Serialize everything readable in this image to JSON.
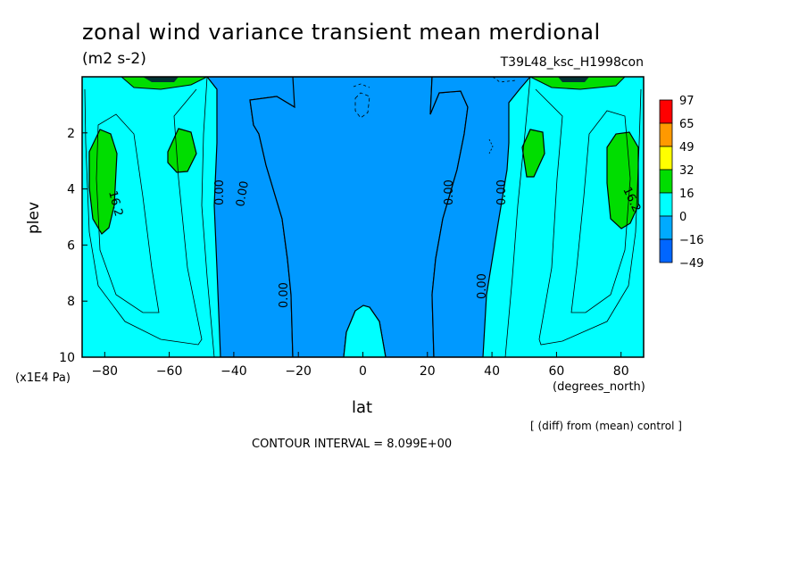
{
  "chart_data": {
    "type": "heatmap",
    "title": "zonal wind variance transient mean merdional",
    "units": "(m2 s-2)",
    "run_label": "T39L48_ksc_H1998con",
    "xlabel": "lat",
    "xunits": "(degrees_north)",
    "ylabel": "plev",
    "yunits": "(x1E4 Pa)",
    "xlim": [
      -87,
      87
    ],
    "ylim": [
      10,
      0
    ],
    "x_ticks": [
      -80,
      -60,
      -40,
      -20,
      0,
      20,
      40,
      60,
      80
    ],
    "y_ticks": [
      2,
      4,
      6,
      8,
      10
    ],
    "colorbar": {
      "levels": [
        "97",
        "65",
        "49",
        "32",
        "16",
        "0",
        "-16",
        "-49"
      ],
      "colors": [
        "#ff0000",
        "#ff9900",
        "#ffff00",
        "#00dd00",
        "#00ffff",
        "#00aaff",
        "#0066ff"
      ]
    },
    "contour_labels": [
      "16.2",
      "0.00",
      "0.00",
      "0.00",
      "0.00",
      "0.00",
      "0.00",
      "16.2"
    ],
    "footnote": "[ (diff) from (mean) control ]",
    "contour_interval": "CONTOUR INTERVAL = 8.099E+00",
    "regions": [
      {
        "fill": "#0099ff",
        "note": "negative band",
        "x": [
          -47,
          -22
        ],
        "y": [
          0.2,
          10
        ]
      },
      {
        "fill": "#0099ff",
        "note": "negative band",
        "x": [
          -22,
          22
        ],
        "y": [
          0.2,
          10
        ]
      },
      {
        "fill": "#0099ff",
        "note": "negative band",
        "x": [
          22,
          47
        ],
        "y": [
          0.2,
          10
        ]
      }
    ]
  }
}
